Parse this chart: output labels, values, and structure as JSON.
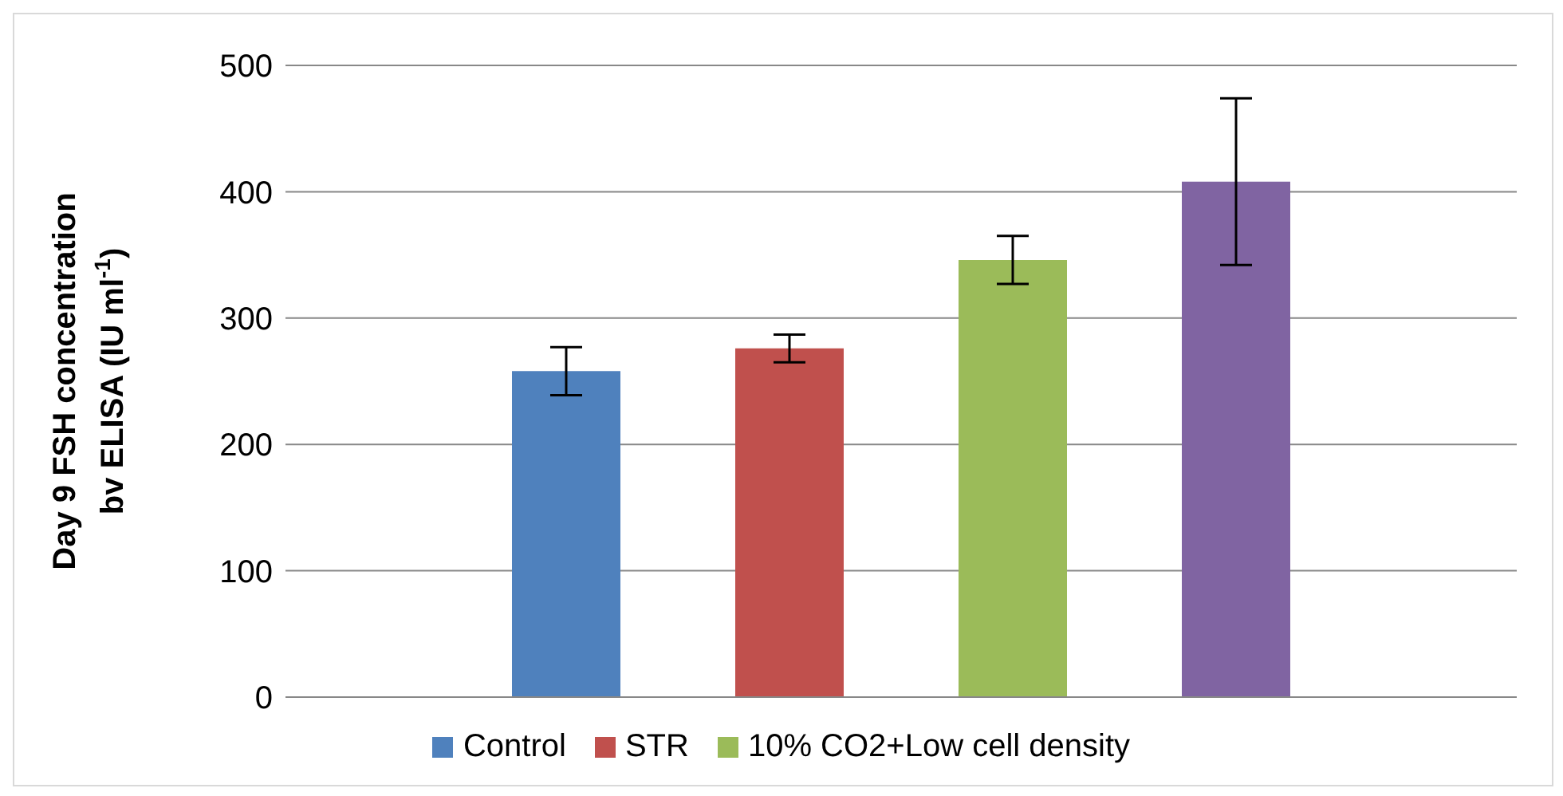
{
  "chart_data": {
    "type": "bar",
    "categories": [
      null
    ],
    "ylabel": "Day 9 FSH concentration bv ELISA (IU ml$^{-1}$)",
    "series": [
      {
        "name": "Control",
        "color": "#4f81bd",
        "values": [
          258
        ],
        "errors": [
          19
        ]
      },
      {
        "name": "STR",
        "color": "#c0504d",
        "values": [
          276
        ],
        "errors": [
          11
        ]
      },
      {
        "name": "10% CO2+Low cell density",
        "color": "#9bbb59",
        "values": [
          346
        ],
        "errors": [
          19
        ]
      },
      {
        "color": "#8064a2",
        "values": [
          408
        ],
        "errors": [
          66
        ]
      }
    ],
    "ylim": [
      0,
      500
    ],
    "yticks": [
      0,
      100,
      200,
      300,
      400,
      500
    ],
    "grid": "y",
    "legend": "bottom"
  }
}
